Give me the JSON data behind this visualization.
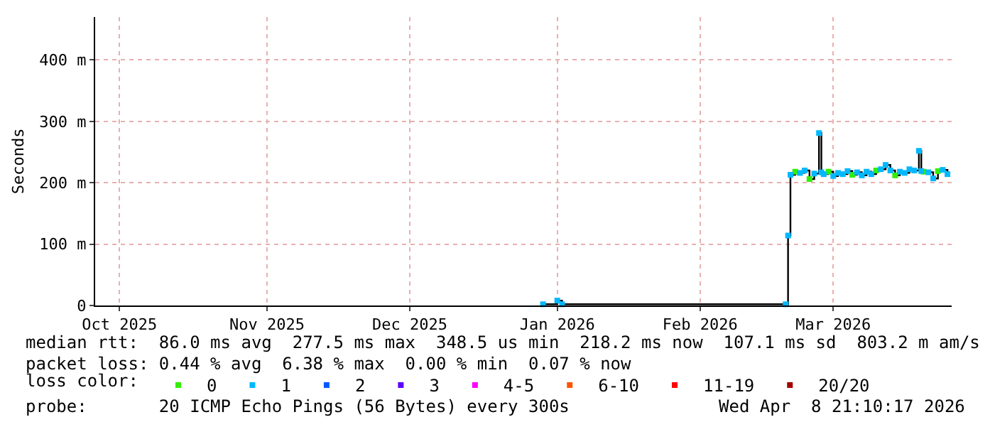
{
  "chart_data": {
    "type": "step",
    "ylabel": "Seconds",
    "legend_title": "loss color:",
    "xlim": [
      "2025-10-10T21:10",
      "2026-04-08T21:10"
    ],
    "xticks": [
      {
        "value": "2025-10-16",
        "label": "Oct 2025"
      },
      {
        "value": "2025-11-16",
        "label": "Nov 2025"
      },
      {
        "value": "2025-12-16",
        "label": "Dec 2025"
      },
      {
        "value": "2026-01-16",
        "label": "Jan 2026"
      },
      {
        "value": "2026-02-15",
        "label": "Feb 2026"
      },
      {
        "value": "2026-03-15",
        "label": "Mar 2026"
      }
    ],
    "ylim": [
      0,
      470
    ],
    "yticks": [
      0,
      {
        "value": 100,
        "label": "100 m"
      },
      {
        "value": 200,
        "label": "200 m"
      },
      {
        "value": 300,
        "label": "300 m"
      },
      {
        "value": 400,
        "label": "400 m"
      }
    ],
    "grid": true,
    "legend": "bottom",
    "marker": "square",
    "x": [
      "2026-01-13",
      "2026-01-16",
      "2026-01-17",
      "2026-03-05",
      "2026-03-05T12:00",
      "2026-03-06",
      "2026-03-07",
      "2026-03-08",
      "2026-03-09",
      "2026-03-10",
      "2026-03-11",
      "2026-03-12",
      "2026-03-12T12:00",
      "2026-03-13",
      "2026-03-14",
      "2026-03-15",
      "2026-03-16",
      "2026-03-17",
      "2026-03-18",
      "2026-03-19",
      "2026-03-20",
      "2026-03-21",
      "2026-03-22",
      "2026-03-23",
      "2026-03-24",
      "2026-03-25",
      "2026-03-26",
      "2026-03-27",
      "2026-03-28",
      "2026-03-29",
      "2026-03-30",
      "2026-03-31",
      "2026-04-01",
      "2026-04-02",
      "2026-04-02T12:00",
      "2026-04-03",
      "2026-04-04",
      "2026-04-05",
      "2026-04-06",
      "2026-04-07",
      "2026-04-08"
    ],
    "series": [
      {
        "color": "#000000",
        "marker": "none",
        "values": [
          2,
          8,
          2,
          2,
          114,
          213,
          218,
          216,
          220,
          206,
          215,
          281,
          217,
          214,
          218,
          211,
          216,
          214,
          219,
          213,
          217,
          212,
          218,
          214,
          220,
          222,
          229,
          220,
          212,
          218,
          216,
          222,
          220,
          252,
          219,
          218,
          217,
          207,
          219,
          221,
          214
        ]
      },
      {
        "type": "scatter",
        "name": "0",
        "color": "#33ee00",
        "x": [
          "2026-03-07",
          "2026-03-10",
          "2026-03-14",
          "2026-03-19",
          "2026-03-24",
          "2026-03-28",
          "2026-04-03",
          "2026-04-06"
        ],
        "values": [
          218,
          206,
          218,
          213,
          220,
          212,
          218,
          219
        ]
      },
      {
        "type": "scatter",
        "name": "1",
        "color": "#00b8ff",
        "x": [
          "2026-01-13",
          "2026-01-16",
          "2026-01-17",
          "2026-03-05",
          "2026-03-05T12:00",
          "2026-03-06",
          "2026-03-08",
          "2026-03-09",
          "2026-03-11",
          "2026-03-12",
          "2026-03-12T12:00",
          "2026-03-13",
          "2026-03-15",
          "2026-03-16",
          "2026-03-17",
          "2026-03-18",
          "2026-03-20",
          "2026-03-21",
          "2026-03-22",
          "2026-03-23",
          "2026-03-25",
          "2026-03-26",
          "2026-03-27",
          "2026-03-29",
          "2026-03-30",
          "2026-03-31",
          "2026-04-01",
          "2026-04-02",
          "2026-04-02T12:00",
          "2026-04-04",
          "2026-04-05",
          "2026-04-07",
          "2026-04-08"
        ],
        "values": [
          2,
          8,
          2,
          2,
          114,
          213,
          216,
          220,
          215,
          281,
          217,
          214,
          211,
          216,
          214,
          219,
          217,
          212,
          218,
          214,
          222,
          229,
          220,
          218,
          216,
          222,
          220,
          252,
          219,
          217,
          207,
          221,
          214
        ]
      },
      {
        "type": "scatter",
        "name": "2",
        "color": "#0059ff",
        "values": [
          null,
          null,
          null,
          null,
          null,
          null,
          null,
          null,
          null,
          null,
          null,
          null,
          null,
          null,
          null,
          null,
          null,
          null,
          null,
          null,
          null,
          null,
          null,
          null,
          null,
          null,
          null,
          null,
          null,
          null,
          null,
          null,
          null,
          null,
          null,
          null,
          null,
          null,
          null,
          null,
          null
        ]
      },
      {
        "type": "scatter",
        "name": "3",
        "color": "#5e00ff",
        "values": [
          null,
          null,
          null,
          null,
          null,
          null,
          null,
          null,
          null,
          null,
          null,
          null,
          null,
          null,
          null,
          null,
          null,
          null,
          null,
          null,
          null,
          null,
          null,
          null,
          null,
          null,
          null,
          null,
          null,
          null,
          null,
          null,
          null,
          null,
          null,
          null,
          null,
          null,
          null,
          null,
          null
        ]
      },
      {
        "type": "scatter",
        "name": "4-5",
        "color": "#ff00ff",
        "values": [
          null,
          null,
          null,
          null,
          null,
          null,
          null,
          null,
          null,
          null,
          null,
          null,
          null,
          null,
          null,
          null,
          null,
          null,
          null,
          null,
          null,
          null,
          null,
          null,
          null,
          null,
          null,
          null,
          null,
          null,
          null,
          null,
          null,
          null,
          null,
          null,
          null,
          null,
          null,
          null,
          null
        ]
      },
      {
        "type": "scatter",
        "name": "6-10",
        "color": "#ff5500",
        "values": [
          null,
          null,
          null,
          null,
          null,
          null,
          null,
          null,
          null,
          null,
          null,
          null,
          null,
          null,
          null,
          null,
          null,
          null,
          null,
          null,
          null,
          null,
          null,
          null,
          null,
          null,
          null,
          null,
          null,
          null,
          null,
          null,
          null,
          null,
          null,
          null,
          null,
          null,
          null,
          null,
          null
        ]
      },
      {
        "type": "scatter",
        "name": "11-19",
        "color": "#ff0000",
        "values": [
          null,
          null,
          null,
          null,
          null,
          null,
          null,
          null,
          null,
          null,
          null,
          null,
          null,
          null,
          null,
          null,
          null,
          null,
          null,
          null,
          null,
          null,
          null,
          null,
          null,
          null,
          null,
          null,
          null,
          null,
          null,
          null,
          null,
          null,
          null,
          null,
          null,
          null,
          null,
          null,
          null
        ]
      },
      {
        "type": "scatter",
        "name": "20/20",
        "color": "#a10000",
        "values": [
          null,
          null,
          null,
          null,
          null,
          null,
          null,
          null,
          null,
          null,
          null,
          null,
          null,
          null,
          null,
          null,
          null,
          null,
          null,
          null,
          null,
          null,
          null,
          null,
          null,
          null,
          null,
          null,
          null,
          null,
          null,
          null,
          null,
          null,
          null,
          null,
          null,
          null,
          null,
          null,
          null
        ]
      }
    ],
    "annotations": [
      "median rtt:  86.0 ms avg  277.5 ms max  348.5 us min  218.2 ms now  107.1 ms sd  803.2 m am/s",
      "packet loss: 0.44 % avg  6.38 % max  0.00 % min  0.07 % now",
      "probe:       20 ICMP Echo Pings (56 Bytes) every 300s",
      "Wed Apr  8 21:10:17 2026"
    ]
  }
}
